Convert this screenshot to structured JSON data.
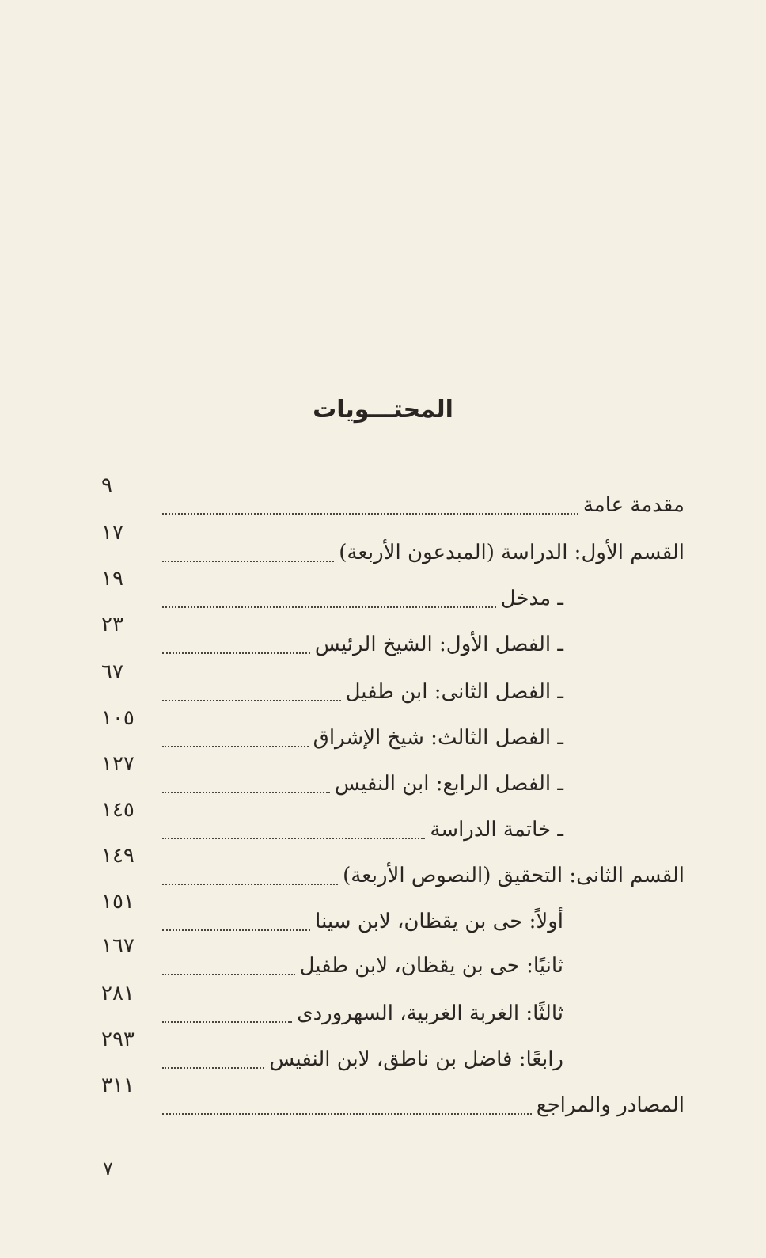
{
  "title": "المحتـــويات",
  "entries": [
    {
      "label": "مقدمة عامة",
      "page": "٩",
      "indent": false
    },
    {
      "label": "القسم الأول: الدراسة (المبدعون الأربعة)",
      "page": "١٧",
      "indent": false
    },
    {
      "label": "ـ مدخل",
      "page": "١٩",
      "indent": true
    },
    {
      "label": "ـ الفصل الأول: الشيخ الرئيس",
      "page": "٢٣",
      "indent": true
    },
    {
      "label": "ـ الفصل الثانى: ابن طفيل",
      "page": "٦٧",
      "indent": true
    },
    {
      "label": "ـ الفصل الثالث: شيخ الإشراق",
      "page": "١٠٥",
      "indent": true
    },
    {
      "label": "ـ الفصل الرابع: ابن النفيس",
      "page": "١٢٧",
      "indent": true
    },
    {
      "label": "ـ خاتمة الدراسة",
      "page": "١٤٥",
      "indent": true
    },
    {
      "label": "القسم الثانى: التحقيق (النصوص الأربعة)",
      "page": "١٤٩",
      "indent": false
    },
    {
      "label": "أولاً: حى بن يقظان، لابن سينا",
      "page": "١٥١",
      "indent": true
    },
    {
      "label": "ثانيًا: حى بن يقظان، لابن طفيل",
      "page": "١٦٧",
      "indent": true
    },
    {
      "label": "ثالثًا: الغربة الغربية، السهروردى",
      "page": "٢٨١",
      "indent": true
    },
    {
      "label": "رابعًا: فاضل بن ناطق، لابن النفيس",
      "page": "٢٩٣",
      "indent": true
    },
    {
      "label": "المصادر والمراجع",
      "page": "٣١١",
      "indent": false
    }
  ],
  "folio": "٧"
}
